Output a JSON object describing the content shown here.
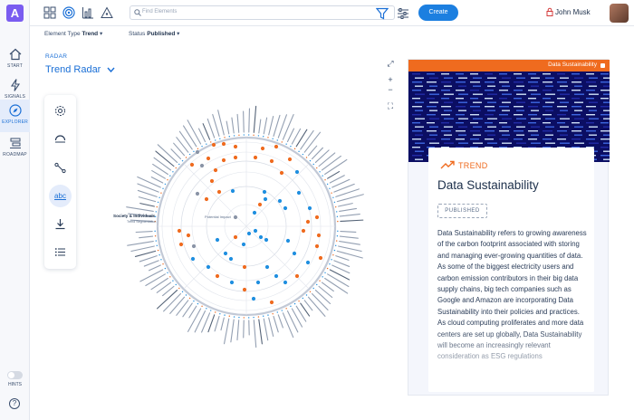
{
  "app": {
    "logo_letter": "A",
    "brand_color": "#7a5cf0",
    "accent": "#1c7fe0"
  },
  "nav": {
    "items": [
      {
        "label": "START",
        "icon": "home-icon"
      },
      {
        "label": "SIGNALS",
        "icon": "lightning-icon"
      },
      {
        "label": "EXPLORER",
        "icon": "compass-icon",
        "active": true
      },
      {
        "label": "ROADMAP",
        "icon": "roadmap-icon"
      }
    ],
    "hints_label": "HINTS",
    "help_glyph": "?"
  },
  "topbar": {
    "search_placeholder": "Find Elements",
    "create_label": "Create",
    "user_name": "John Musk"
  },
  "filters": {
    "type_label": "Element Type",
    "type_value": "Trend",
    "status_label": "Status",
    "status_value": "Published"
  },
  "radar": {
    "kicker": "RADAR",
    "title": "Trend Radar",
    "ring_label": "Potential Impact",
    "category_label": "Society & Individuals",
    "category_sublabel": "Trend Segmentation",
    "dot_colors": {
      "orange": "#ef6b1f",
      "blue": "#1f8fe0",
      "grey": "#8a94a6"
    }
  },
  "palette": {
    "abc_label": "abc"
  },
  "panel": {
    "header_label": "Data Sustainability",
    "kicker": "TREND",
    "title": "Data Sustainability",
    "status_badge": "PUBLISHED",
    "description": "Data Sustainability refers to growing awareness of the carbon footprint associated with storing and managing ever-growing quantities of data. As some of the biggest electricity users and carbon emission contributors in their big data supply chains, big tech companies such as Google and Amazon are incorporating Data Sustainability into their policies and practices. As cloud computing proliferates and more data centers are set up globally, Data Sustainability will become an increasingly relevant consideration as ESG regulations"
  }
}
